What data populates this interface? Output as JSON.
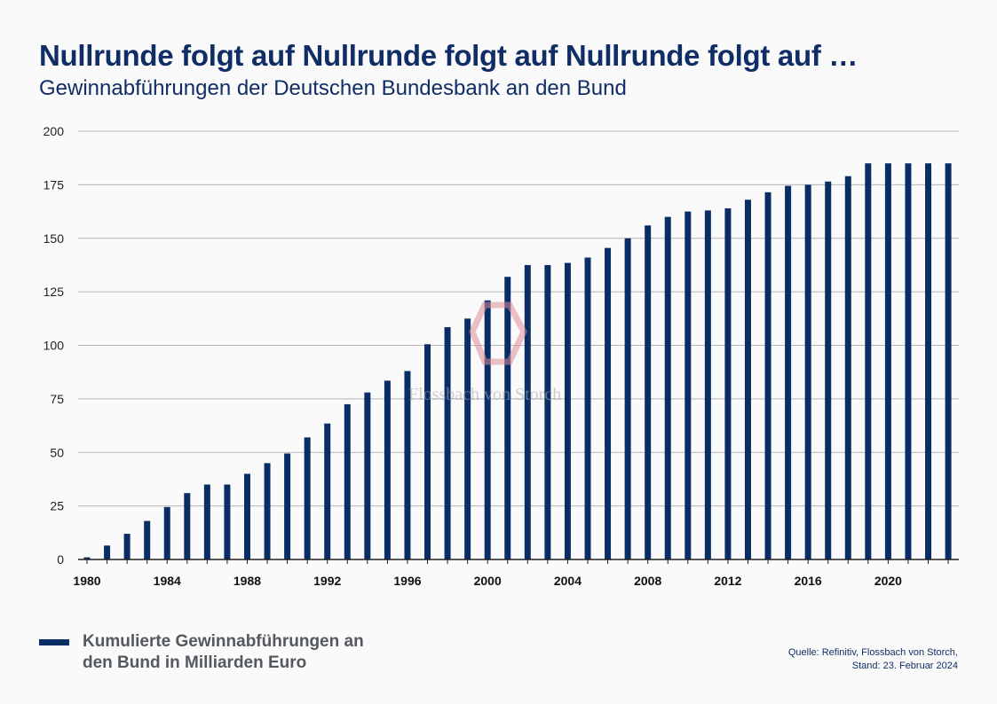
{
  "header": {
    "title": "Nullrunde folgt auf Nullrunde folgt auf Nullrunde folgt auf …",
    "subtitle": "Gewinnabführungen der Deutschen Bundesbank an den Bund"
  },
  "legend": {
    "label": "Kumulierte Gewinnabführungen an den Bund in Milliarden Euro"
  },
  "source": {
    "line1": "Quelle: Refinitiv, Flossbach von Storch,",
    "line2": "Stand: 23. Februar 2024"
  },
  "watermark": {
    "text": "Flossbach von Storch"
  },
  "colors": {
    "bar": "#0b2d66",
    "title": "#102e65",
    "grid": "#b5b5b5",
    "axis": "#222222"
  },
  "chart_data": {
    "type": "bar",
    "title": "Nullrunde folgt auf Nullrunde folgt auf Nullrunde folgt auf …",
    "subtitle": "Gewinnabführungen der Deutschen Bundesbank an den Bund",
    "xlabel": "",
    "ylabel": "",
    "ylim": [
      0,
      200
    ],
    "yticks": [
      0,
      25,
      50,
      75,
      100,
      125,
      150,
      175,
      200
    ],
    "xticks": [
      1980,
      1984,
      1988,
      1992,
      1996,
      2000,
      2004,
      2008,
      2012,
      2016,
      2020
    ],
    "grid": true,
    "legend_position": "bottom-left",
    "categories": [
      1980,
      1981,
      1982,
      1983,
      1984,
      1985,
      1986,
      1987,
      1988,
      1989,
      1990,
      1991,
      1992,
      1993,
      1994,
      1995,
      1996,
      1997,
      1998,
      1999,
      2000,
      2001,
      2002,
      2003,
      2004,
      2005,
      2006,
      2007,
      2008,
      2009,
      2010,
      2011,
      2012,
      2013,
      2014,
      2015,
      2016,
      2017,
      2018,
      2019,
      2020,
      2021,
      2022,
      2023
    ],
    "series": [
      {
        "name": "Kumulierte Gewinnabführungen an den Bund in Milliarden Euro",
        "values": [
          1,
          6.5,
          12,
          18,
          24.5,
          31,
          35,
          35,
          40,
          45,
          49.5,
          57,
          63.5,
          72.5,
          78,
          83.5,
          88,
          100.5,
          108.5,
          112.5,
          121,
          132,
          137.5,
          137.5,
          138.5,
          141,
          145.5,
          150,
          156,
          160,
          162.5,
          163,
          164,
          168,
          171.5,
          174.5,
          175,
          176.5,
          179,
          185,
          185,
          185,
          185,
          185
        ]
      }
    ]
  }
}
